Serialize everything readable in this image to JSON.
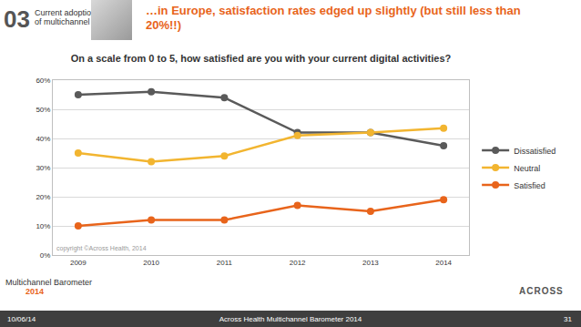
{
  "slide": {
    "section_number": "03",
    "section_label": "Current adoption of multichannel",
    "headline": "…in Europe, satisfaction rates edged up slightly (but still less than 20%!!)",
    "logo": [
      "Multichannel Barometer",
      "2014"
    ],
    "brand": "ACROSS",
    "footer_date": "10/06/14",
    "footer_text": "Across Health Multichannel Barometer 2014",
    "page": "31"
  },
  "chart_data": {
    "type": "line",
    "title": "On a scale from 0 to 5, how satisfied are you with your current digital activities?",
    "categories": [
      "2009",
      "2010",
      "2011",
      "2012",
      "2013",
      "2014"
    ],
    "series": [
      {
        "name": "Dissatisfied",
        "color": "#5a5a5a",
        "values": [
          55,
          56,
          54,
          42,
          42,
          37.5
        ]
      },
      {
        "name": "Neutral",
        "color": "#f2b530",
        "values": [
          35,
          32,
          34,
          41,
          42,
          43.5
        ]
      },
      {
        "name": "Satisfied",
        "color": "#e8641b",
        "values": [
          10,
          12,
          12,
          17,
          15,
          19
        ]
      }
    ],
    "ylim": [
      0,
      60
    ],
    "yticks": [
      {
        "value": 0,
        "label": "0%"
      },
      {
        "value": 10,
        "label": "10%"
      },
      {
        "value": 20,
        "label": "20%"
      },
      {
        "value": 30,
        "label": "30%"
      },
      {
        "value": 40,
        "label": "40%"
      },
      {
        "value": 50,
        "label": "50%"
      },
      {
        "value": 60,
        "label": "60%"
      }
    ],
    "grid": true,
    "legend": "right",
    "marker": "circle",
    "annotations": [
      "copyright ©Across Health, 2014"
    ]
  }
}
